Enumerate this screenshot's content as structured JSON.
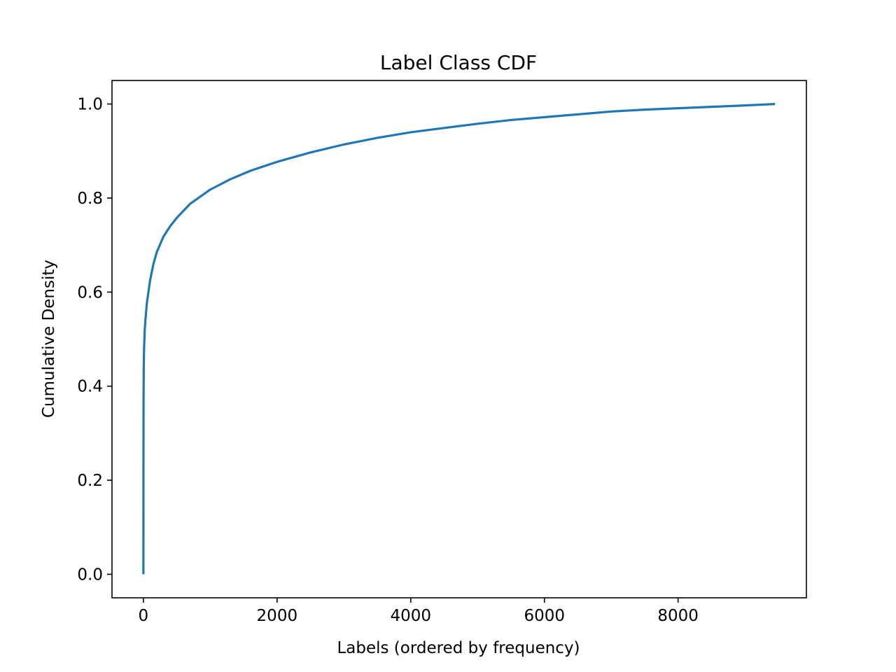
{
  "chart_data": {
    "type": "line",
    "title": "Label Class CDF",
    "xlabel": "Labels (ordered by frequency)",
    "ylabel": "Cumulative Density",
    "xlim": [
      -470,
      9920
    ],
    "ylim": [
      -0.05,
      1.05
    ],
    "xticks": [
      0,
      2000,
      4000,
      6000,
      8000
    ],
    "xtick_labels": [
      "0",
      "2000",
      "4000",
      "6000",
      "8000"
    ],
    "yticks": [
      0.0,
      0.2,
      0.4,
      0.6,
      0.8,
      1.0
    ],
    "ytick_labels": [
      "0.0",
      "0.2",
      "0.4",
      "0.6",
      "0.8",
      "1.0"
    ],
    "grid": false,
    "legend": "none",
    "series": [
      {
        "color": "#1f77b4",
        "x": [
          0,
          1,
          2,
          5,
          10,
          20,
          30,
          50,
          75,
          100,
          150,
          200,
          300,
          400,
          500,
          700,
          1000,
          1300,
          1600,
          2000,
          2500,
          3000,
          3500,
          4000,
          4500,
          5000,
          5500,
          6000,
          6500,
          7000,
          7500,
          8000,
          8500,
          9000,
          9450
        ],
        "y": [
          0.0,
          0.27,
          0.36,
          0.44,
          0.48,
          0.52,
          0.54,
          0.575,
          0.6,
          0.625,
          0.66,
          0.685,
          0.718,
          0.74,
          0.758,
          0.788,
          0.818,
          0.84,
          0.858,
          0.877,
          0.897,
          0.914,
          0.928,
          0.94,
          0.949,
          0.958,
          0.966,
          0.972,
          0.978,
          0.984,
          0.988,
          0.991,
          0.994,
          0.997,
          1.0
        ]
      }
    ]
  }
}
